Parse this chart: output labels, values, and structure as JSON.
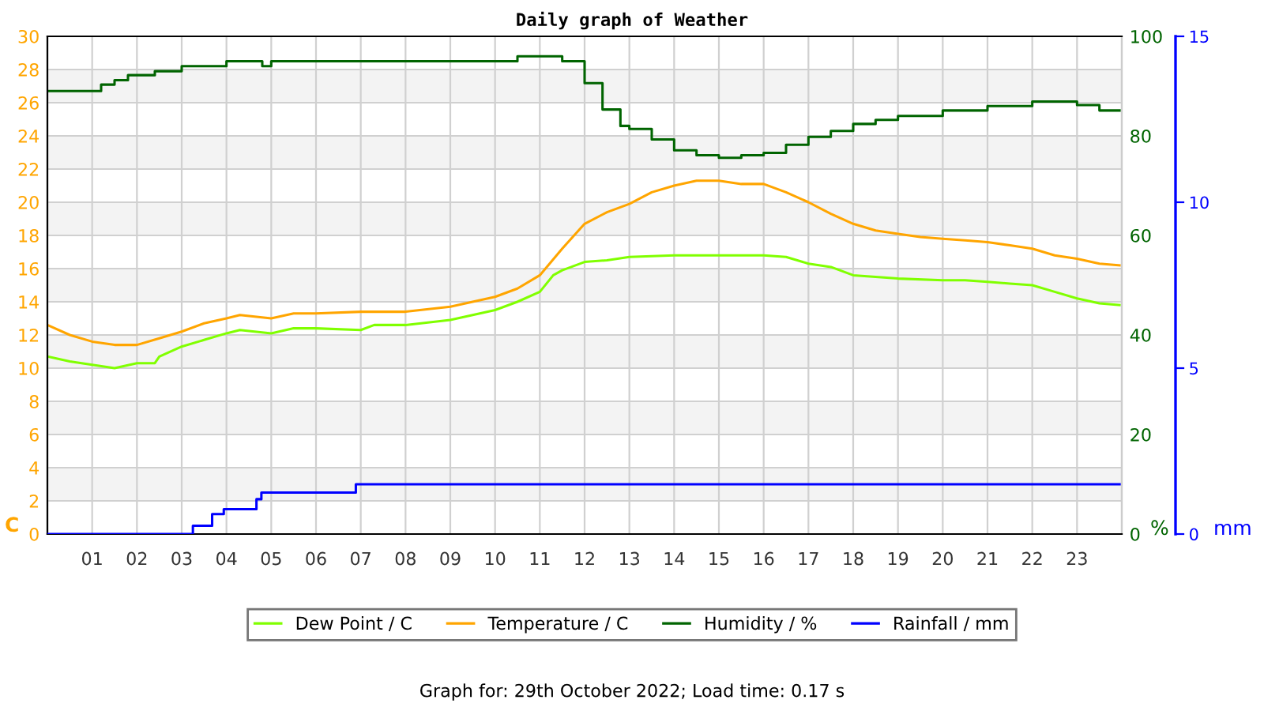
{
  "chart_data": {
    "type": "line",
    "title": "Daily graph of Weather",
    "ylabel": "C",
    "y2label": "%",
    "y3label": "mm",
    "xlim": [
      0,
      24
    ],
    "xticks": [
      {
        "value": 1,
        "label": "01"
      },
      {
        "value": 2,
        "label": "02"
      },
      {
        "value": 3,
        "label": "03"
      },
      {
        "value": 4,
        "label": "04"
      },
      {
        "value": 5,
        "label": "05"
      },
      {
        "value": 6,
        "label": "06"
      },
      {
        "value": 7,
        "label": "07"
      },
      {
        "value": 8,
        "label": "08"
      },
      {
        "value": 9,
        "label": "09"
      },
      {
        "value": 10,
        "label": "10"
      },
      {
        "value": 11,
        "label": "11"
      },
      {
        "value": 12,
        "label": "12"
      },
      {
        "value": 13,
        "label": "13"
      },
      {
        "value": 14,
        "label": "14"
      },
      {
        "value": 15,
        "label": "15"
      },
      {
        "value": 16,
        "label": "16"
      },
      {
        "value": 17,
        "label": "17"
      },
      {
        "value": 18,
        "label": "18"
      },
      {
        "value": 19,
        "label": "19"
      },
      {
        "value": 20,
        "label": "20"
      },
      {
        "value": 21,
        "label": "21"
      },
      {
        "value": 22,
        "label": "22"
      },
      {
        "value": 23,
        "label": "23"
      }
    ],
    "ylim": [
      0,
      30
    ],
    "yticks": [
      0,
      2,
      4,
      6,
      8,
      10,
      12,
      14,
      16,
      18,
      20,
      22,
      24,
      26,
      28,
      30
    ],
    "y2lim": [
      0,
      100
    ],
    "y2ticks": [
      0,
      20,
      40,
      60,
      80,
      100
    ],
    "y3lim": [
      0,
      15
    ],
    "y3ticks": [
      0,
      5,
      10,
      15
    ],
    "grid": true,
    "legend": "bottom",
    "marker": "none",
    "series": [
      {
        "name": "Dew Point / C",
        "color": "#80ff00",
        "x": [
          0,
          0.5,
          1,
          1.5,
          2,
          2.4,
          2.5,
          3,
          3.5,
          4,
          4.3,
          5,
          5.5,
          6,
          7,
          7.3,
          8,
          9,
          9.5,
          10,
          10.5,
          11,
          11.3,
          11.5,
          12,
          12.5,
          13,
          14,
          15,
          16,
          16.5,
          17,
          17.5,
          18,
          18.5,
          19,
          20,
          20.5,
          21,
          21.5,
          22,
          22.5,
          23,
          23.5,
          23.95
        ],
        "values": [
          10.7,
          10.4,
          10.2,
          10.0,
          10.3,
          10.3,
          10.7,
          11.3,
          11.7,
          12.1,
          12.3,
          12.1,
          12.4,
          12.4,
          12.3,
          12.6,
          12.6,
          12.9,
          13.2,
          13.5,
          14.0,
          14.6,
          15.6,
          15.9,
          16.4,
          16.5,
          16.7,
          16.8,
          16.8,
          16.8,
          16.7,
          16.3,
          16.1,
          15.6,
          15.5,
          15.4,
          15.3,
          15.3,
          15.2,
          15.1,
          15.0,
          14.6,
          14.2,
          13.9,
          13.8
        ]
      },
      {
        "name": "Temperature / C",
        "color": "#ffa500",
        "x": [
          0,
          0.5,
          1,
          1.5,
          2,
          2.5,
          3,
          3.5,
          4,
          4.3,
          5,
          5.5,
          6,
          7,
          8,
          9,
          10,
          10.5,
          11,
          11.5,
          12,
          12.5,
          13,
          13.5,
          14,
          14.5,
          15,
          15.5,
          16,
          16.5,
          17,
          17.5,
          18,
          18.5,
          19,
          19.5,
          20,
          20.5,
          21,
          21.5,
          22,
          22.5,
          23,
          23.5,
          23.95
        ],
        "values": [
          12.6,
          12.0,
          11.6,
          11.4,
          11.4,
          11.8,
          12.2,
          12.7,
          13.0,
          13.2,
          13.0,
          13.3,
          13.3,
          13.4,
          13.4,
          13.7,
          14.3,
          14.8,
          15.6,
          17.2,
          18.7,
          19.4,
          19.9,
          20.6,
          21.0,
          21.3,
          21.3,
          21.1,
          21.1,
          20.6,
          20.0,
          19.3,
          18.7,
          18.3,
          18.1,
          17.9,
          17.8,
          17.7,
          17.6,
          17.4,
          17.2,
          16.8,
          16.6,
          16.3,
          16.2
        ]
      },
      {
        "name": "Humidity / %",
        "color": "#006400",
        "type": "step",
        "axis": "y2",
        "x": [
          0,
          1.2,
          1.5,
          1.8,
          2.4,
          3.0,
          4.0,
          4.8,
          5.0,
          9.0,
          10.5,
          11.3,
          11.5,
          12.0,
          12.4,
          12.8,
          13.0,
          13.5,
          14.0,
          14.5,
          15.0,
          15.5,
          16.0,
          16.5,
          17.0,
          17.5,
          18.0,
          18.5,
          19.0,
          20.0,
          21.0,
          22.0,
          23.0,
          23.5,
          23.95
        ],
        "values": [
          89.0,
          90.3,
          91.2,
          92.2,
          93.0,
          94.0,
          95.0,
          94.0,
          95.0,
          95.0,
          96.0,
          96.0,
          95.0,
          90.6,
          85.3,
          82.0,
          81.4,
          79.3,
          77.1,
          76.1,
          75.6,
          76.1,
          76.6,
          78.2,
          79.8,
          81.0,
          82.4,
          83.2,
          84.0,
          85.1,
          86.0,
          86.9,
          86.2,
          85.1,
          85.1
        ]
      },
      {
        "name": "Rainfall / mm",
        "color": "#0000ff",
        "type": "step",
        "axis": "y3",
        "x": [
          0,
          3.25,
          3.68,
          3.94,
          4.67,
          4.78,
          6.89,
          23.95
        ],
        "values": [
          0,
          0.25,
          0.6,
          0.75,
          1.05,
          1.25,
          1.5,
          1.5
        ]
      }
    ],
    "annotations": [
      "Graph for: 29th October 2022; Load time: 0.17 s"
    ]
  }
}
